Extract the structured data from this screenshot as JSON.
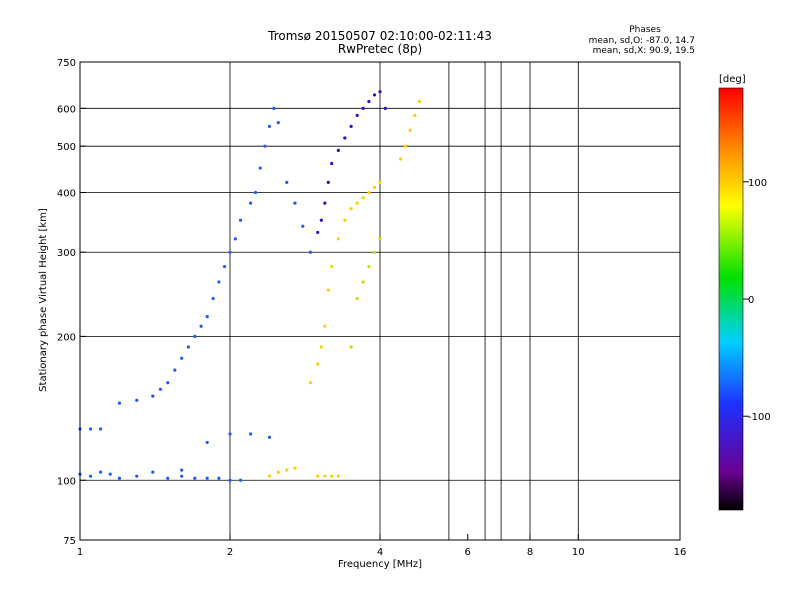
{
  "chart_data": {
    "type": "scatter",
    "title": "Tromsø 20150507 02:10:00-02:11:43",
    "subtitle": "RwPretec (8p)",
    "xlabel": "Frequency [MHz]",
    "ylabel": "Stationary phase Virtual Height [km]",
    "x_scale": "log",
    "y_scale": "log",
    "xlim": [
      1,
      16
    ],
    "ylim": [
      75,
      750
    ],
    "x_ticks": [
      1,
      2,
      4,
      6,
      8,
      10,
      16
    ],
    "x_tick_labels": [
      "1",
      "2",
      "4",
      "6",
      "8",
      "10",
      "16"
    ],
    "x_gridlines": [
      2,
      4,
      5.5,
      6.5,
      7,
      8,
      10
    ],
    "y_ticks": [
      75,
      100,
      200,
      300,
      400,
      500,
      600,
      750
    ],
    "y_tick_labels": [
      "75",
      "100",
      "200",
      "300",
      "400",
      "500",
      "600",
      "750"
    ],
    "grid": true,
    "legend": {
      "title": "Phases",
      "lines": [
        "mean, sd,O: -87.0, 14.7",
        "mean, sd,X:  90.9, 19.5"
      ],
      "placement": "top-right"
    },
    "colorbar": {
      "label": "[deg]",
      "ticks": [
        100,
        0,
        -100
      ],
      "tick_labels": [
        "100",
        "0",
        "-100"
      ],
      "range": [
        -180,
        180
      ],
      "colormap": "rainbow (black-purple-blue-cyan-green-yellow-orange-red)"
    },
    "series": [
      {
        "mode": "O",
        "phase_color": "#1e5aff",
        "points": [
          [
            1.0,
            103
          ],
          [
            1.05,
            102
          ],
          [
            1.1,
            104
          ],
          [
            1.15,
            103
          ],
          [
            1.2,
            101
          ],
          [
            1.3,
            102
          ],
          [
            1.4,
            104
          ],
          [
            1.5,
            101
          ],
          [
            1.6,
            102
          ],
          [
            1.7,
            101
          ],
          [
            1.8,
            101
          ],
          [
            1.9,
            101
          ],
          [
            2.0,
            100
          ],
          [
            2.1,
            100
          ],
          [
            1.0,
            128
          ],
          [
            1.05,
            128
          ],
          [
            1.1,
            128
          ],
          [
            1.2,
            145
          ],
          [
            1.3,
            147
          ],
          [
            1.4,
            150
          ],
          [
            1.45,
            155
          ],
          [
            1.5,
            160
          ],
          [
            1.55,
            170
          ],
          [
            1.6,
            180
          ],
          [
            1.65,
            190
          ],
          [
            1.7,
            200
          ],
          [
            1.75,
            210
          ],
          [
            1.8,
            220
          ],
          [
            1.85,
            240
          ],
          [
            1.9,
            260
          ],
          [
            1.95,
            280
          ],
          [
            2.0,
            300
          ],
          [
            2.05,
            320
          ],
          [
            2.1,
            350
          ],
          [
            2.2,
            380
          ],
          [
            2.25,
            400
          ],
          [
            2.3,
            450
          ],
          [
            2.35,
            500
          ],
          [
            2.4,
            550
          ],
          [
            2.45,
            600
          ],
          [
            2.5,
            560
          ],
          [
            2.6,
            420
          ],
          [
            2.7,
            380
          ],
          [
            2.8,
            340
          ],
          [
            2.9,
            300
          ],
          [
            1.6,
            105
          ],
          [
            1.8,
            120
          ],
          [
            2.0,
            125
          ],
          [
            2.2,
            125
          ],
          [
            2.4,
            123
          ]
        ]
      },
      {
        "mode": "O-high",
        "phase_color": "#2a10c8",
        "points": [
          [
            3.0,
            330
          ],
          [
            3.05,
            350
          ],
          [
            3.1,
            380
          ],
          [
            3.15,
            420
          ],
          [
            3.2,
            460
          ],
          [
            3.3,
            490
          ],
          [
            3.4,
            520
          ],
          [
            3.5,
            550
          ],
          [
            3.6,
            580
          ],
          [
            3.7,
            600
          ],
          [
            3.8,
            620
          ],
          [
            3.9,
            640
          ],
          [
            4.0,
            650
          ],
          [
            4.1,
            600
          ]
        ]
      },
      {
        "mode": "X",
        "phase_color": "#ffd000",
        "points": [
          [
            2.9,
            160
          ],
          [
            3.0,
            175
          ],
          [
            3.05,
            190
          ],
          [
            3.1,
            210
          ],
          [
            3.15,
            250
          ],
          [
            3.2,
            280
          ],
          [
            3.3,
            320
          ],
          [
            3.4,
            350
          ],
          [
            3.5,
            370
          ],
          [
            3.6,
            380
          ],
          [
            3.7,
            390
          ],
          [
            3.8,
            400
          ],
          [
            3.9,
            410
          ],
          [
            4.0,
            420
          ],
          [
            4.4,
            470
          ],
          [
            4.5,
            500
          ],
          [
            4.6,
            540
          ],
          [
            4.7,
            580
          ],
          [
            4.8,
            620
          ],
          [
            3.0,
            102
          ],
          [
            3.1,
            102
          ],
          [
            3.2,
            102
          ],
          [
            3.3,
            102
          ],
          [
            2.4,
            102
          ],
          [
            2.5,
            104
          ],
          [
            2.6,
            105
          ],
          [
            2.7,
            106
          ]
        ]
      },
      {
        "mode": "X-mid",
        "phase_color": "#b0e800",
        "points": [
          [
            3.5,
            190
          ],
          [
            3.6,
            240
          ],
          [
            3.7,
            260
          ],
          [
            3.8,
            280
          ],
          [
            3.9,
            300
          ],
          [
            4.0,
            320
          ]
        ]
      }
    ]
  }
}
